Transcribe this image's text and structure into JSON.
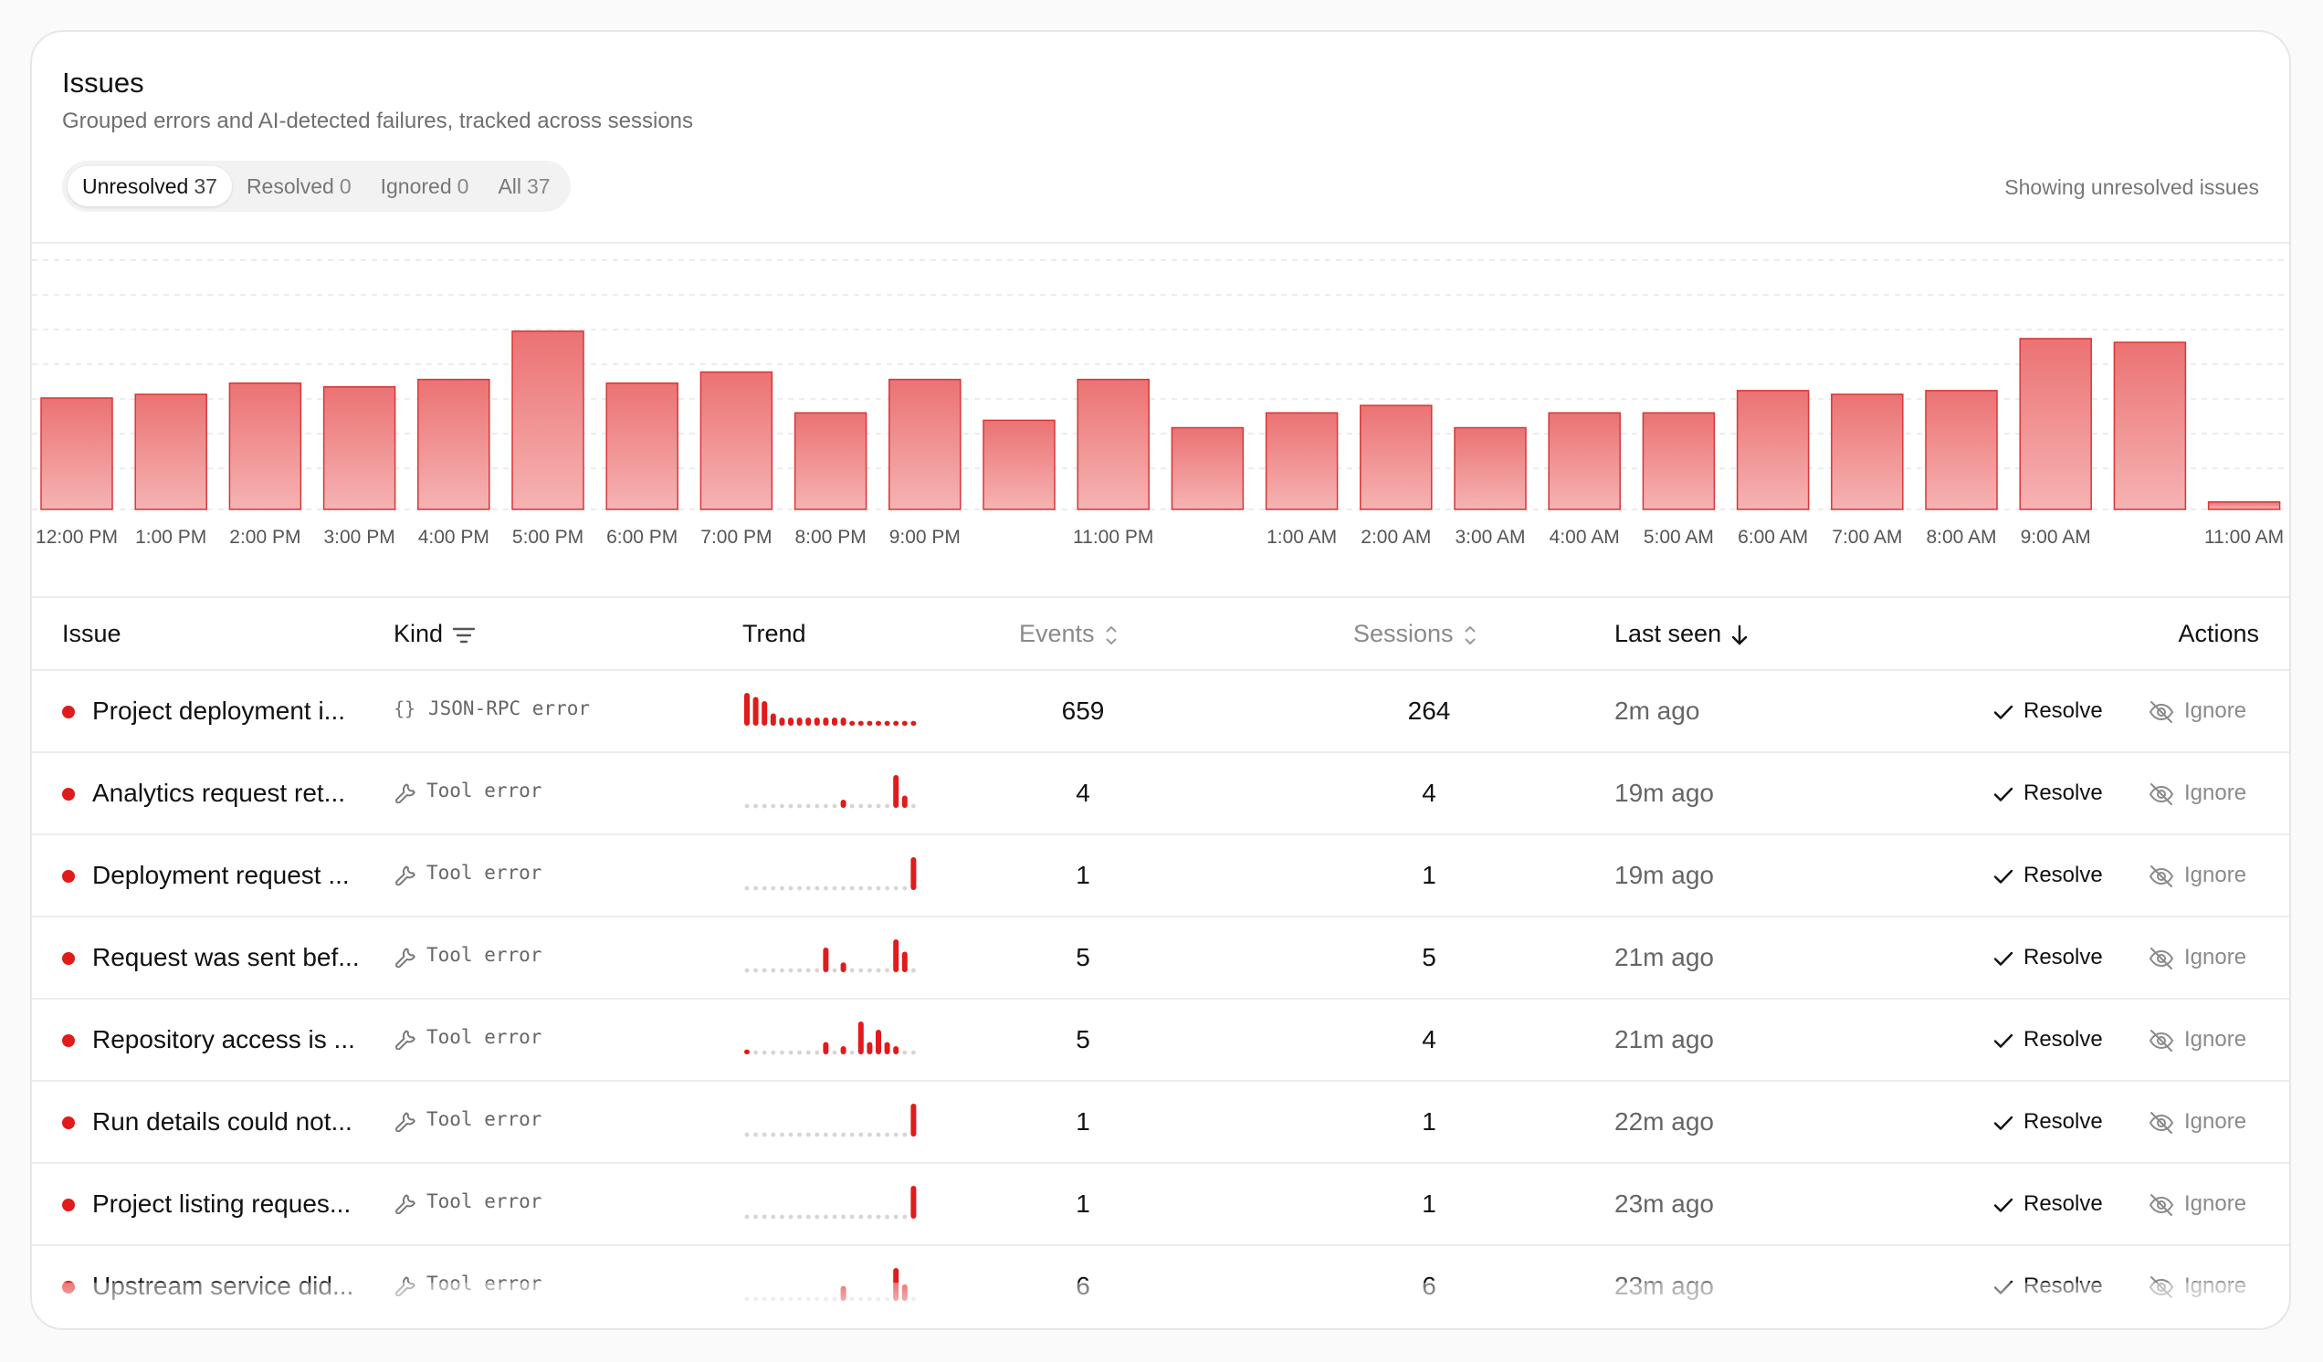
{
  "header": {
    "title": "Issues",
    "subtitle": "Grouped errors and AI-detected failures, tracked across sessions",
    "tabs": [
      {
        "label": "Unresolved",
        "count": "37",
        "active": true
      },
      {
        "label": "Resolved",
        "count": "0",
        "active": false
      },
      {
        "label": "Ignored",
        "count": "0",
        "active": false
      },
      {
        "label": "All",
        "count": "37",
        "active": false
      }
    ],
    "showing": "Showing unresolved issues"
  },
  "colors": {
    "accent": "#e01b1b",
    "bar_top": "#eb7273",
    "bar_bottom": "#f6b3b3",
    "bar_stroke": "#d93636",
    "muted_dot": "#d6d6d6"
  },
  "chart_data": {
    "type": "bar",
    "tick_labels": [
      "12:00 PM",
      "1:00 PM",
      "2:00 PM",
      "3:00 PM",
      "4:00 PM",
      "5:00 PM",
      "6:00 PM",
      "7:00 PM",
      "8:00 PM",
      "9:00 PM",
      "",
      "11:00 PM",
      "",
      "1:00 AM",
      "2:00 AM",
      "3:00 AM",
      "4:00 AM",
      "5:00 AM",
      "6:00 AM",
      "7:00 AM",
      "8:00 AM",
      "9:00 AM",
      "",
      "11:00 AM"
    ],
    "values": [
      15,
      15.5,
      17,
      16.5,
      17.5,
      24,
      17,
      18.5,
      13,
      17.5,
      12,
      17.5,
      11,
      13,
      14,
      11,
      13,
      13,
      16,
      15.5,
      16,
      23,
      22.5,
      1
    ],
    "ylim": [
      0,
      30
    ],
    "grid": true,
    "legend": "none"
  },
  "table": {
    "columns": {
      "issue": "Issue",
      "kind": "Kind",
      "trend": "Trend",
      "events": "Events",
      "sessions": "Sessions",
      "last_seen": "Last seen",
      "actions": "Actions"
    },
    "resolve_label": "Resolve",
    "ignore_label": "Ignore",
    "rows": [
      {
        "issue": "Project deployment i...",
        "kind": "JSON-RPC error",
        "kind_icon": "braces-icon",
        "events": "659",
        "sessions": "264",
        "last_seen": "2m ago",
        "trend": [
          4,
          3.5,
          3,
          1.5,
          1,
          1,
          1,
          1,
          1,
          1,
          1,
          1,
          0.6,
          0.6,
          0.6,
          0.6,
          0.6,
          0.6,
          0.6,
          0.6
        ]
      },
      {
        "issue": "Analytics request ret...",
        "kind": "Tool error",
        "kind_icon": "wrench-icon",
        "events": "4",
        "sessions": "4",
        "last_seen": "19m ago",
        "trend": [
          0,
          0,
          0,
          0,
          0,
          0,
          0,
          0,
          0,
          0,
          0,
          1,
          0,
          0,
          0,
          0,
          0,
          4,
          1.5,
          0
        ]
      },
      {
        "issue": "Deployment request ...",
        "kind": "Tool error",
        "kind_icon": "wrench-icon",
        "events": "1",
        "sessions": "1",
        "last_seen": "19m ago",
        "trend": [
          0,
          0,
          0,
          0,
          0,
          0,
          0,
          0,
          0,
          0,
          0,
          0,
          0,
          0,
          0,
          0,
          0,
          0,
          0,
          4
        ]
      },
      {
        "issue": "Request was sent bef...",
        "kind": "Tool error",
        "kind_icon": "wrench-icon",
        "events": "5",
        "sessions": "5",
        "last_seen": "21m ago",
        "trend": [
          0,
          0,
          0,
          0,
          0,
          0,
          0,
          0,
          0,
          3,
          0,
          1.2,
          0,
          0,
          0,
          0,
          0,
          4,
          2.5,
          0
        ]
      },
      {
        "issue": "Repository access is ...",
        "kind": "Tool error",
        "kind_icon": "wrench-icon",
        "events": "5",
        "sessions": "4",
        "last_seen": "21m ago",
        "trend": [
          0.6,
          0,
          0,
          0,
          0,
          0,
          0,
          0,
          0,
          1.5,
          0,
          1,
          0,
          4,
          1.5,
          3,
          1.5,
          1,
          0,
          0
        ]
      },
      {
        "issue": "Run details could not...",
        "kind": "Tool error",
        "kind_icon": "wrench-icon",
        "events": "1",
        "sessions": "1",
        "last_seen": "22m ago",
        "trend": [
          0,
          0,
          0,
          0,
          0,
          0,
          0,
          0,
          0,
          0,
          0,
          0,
          0,
          0,
          0,
          0,
          0,
          0,
          0,
          4
        ]
      },
      {
        "issue": "Project listing reques...",
        "kind": "Tool error",
        "kind_icon": "wrench-icon",
        "events": "1",
        "sessions": "1",
        "last_seen": "23m ago",
        "trend": [
          0,
          0,
          0,
          0,
          0,
          0,
          0,
          0,
          0,
          0,
          0,
          0,
          0,
          0,
          0,
          0,
          0,
          0,
          0,
          4
        ]
      },
      {
        "issue": "Upstream service did...",
        "kind": "Tool error",
        "kind_icon": "wrench-icon",
        "events": "6",
        "sessions": "6",
        "last_seen": "23m ago",
        "trend": [
          0,
          0,
          0,
          0,
          0,
          0,
          0,
          0,
          0,
          0,
          0,
          1.8,
          0,
          0,
          0,
          0,
          0,
          4,
          2,
          0
        ]
      }
    ]
  }
}
